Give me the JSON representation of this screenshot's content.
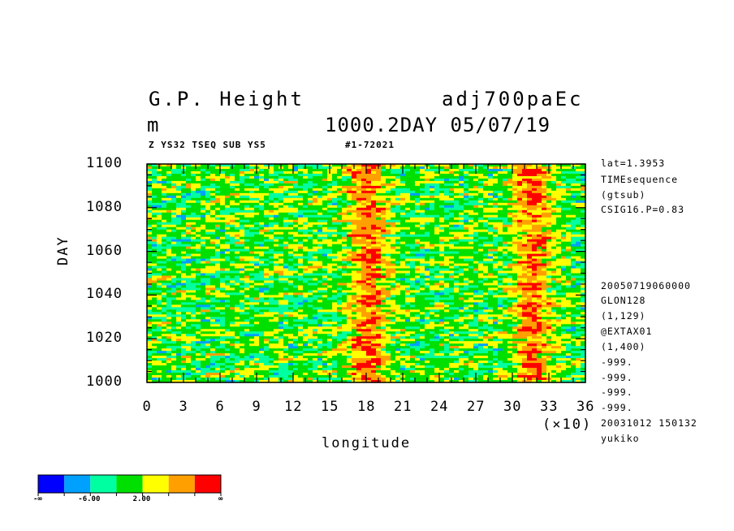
{
  "header": {
    "title_left": "G.P. Height",
    "title_right": "adj700paEc",
    "units": "m",
    "subtitle_right": "1000.2DAY 05/07/19",
    "sub_left": "Z YS32 TSEQ SUB YS5",
    "sub_right": "#1-72021"
  },
  "side_info": {
    "top": [
      "lat=1.3953",
      "TIMEsequence",
      "(gtsub)",
      "CSIG16.P=0.83"
    ],
    "bottom": [
      "20050719060000",
      "GLON128",
      "(1,129)",
      "@EXTAX01",
      "(1,400)",
      "-999.",
      "-999.",
      "-999.",
      "-999.",
      "20031012 150132",
      "yukiko"
    ]
  },
  "chart_data": {
    "type": "heatmap",
    "title": "G.P. Height",
    "xlabel": "longitude",
    "x_multiplier": "(×10)",
    "ylabel": "DAY",
    "xlim": [
      0,
      36
    ],
    "ylim": [
      1000,
      1100
    ],
    "x_ticks": [
      0,
      3,
      6,
      9,
      12,
      15,
      18,
      21,
      24,
      27,
      30,
      33,
      36
    ],
    "y_ticks": [
      1000,
      1020,
      1040,
      1060,
      1080,
      1100
    ],
    "colorbar": {
      "colors": [
        "#0000ff",
        "#00a0ff",
        "#00ffa0",
        "#00e000",
        "#ffff00",
        "#ffa000",
        "#ff0000"
      ],
      "labels": [
        "-∞",
        "-6.00",
        "2.00",
        "∞"
      ]
    },
    "features": [
      {
        "description": "positive anomaly band",
        "x_center": 18,
        "color": "#ff0000"
      },
      {
        "description": "positive anomaly band",
        "x_center": 31.5,
        "color": "#ff0000"
      }
    ]
  }
}
